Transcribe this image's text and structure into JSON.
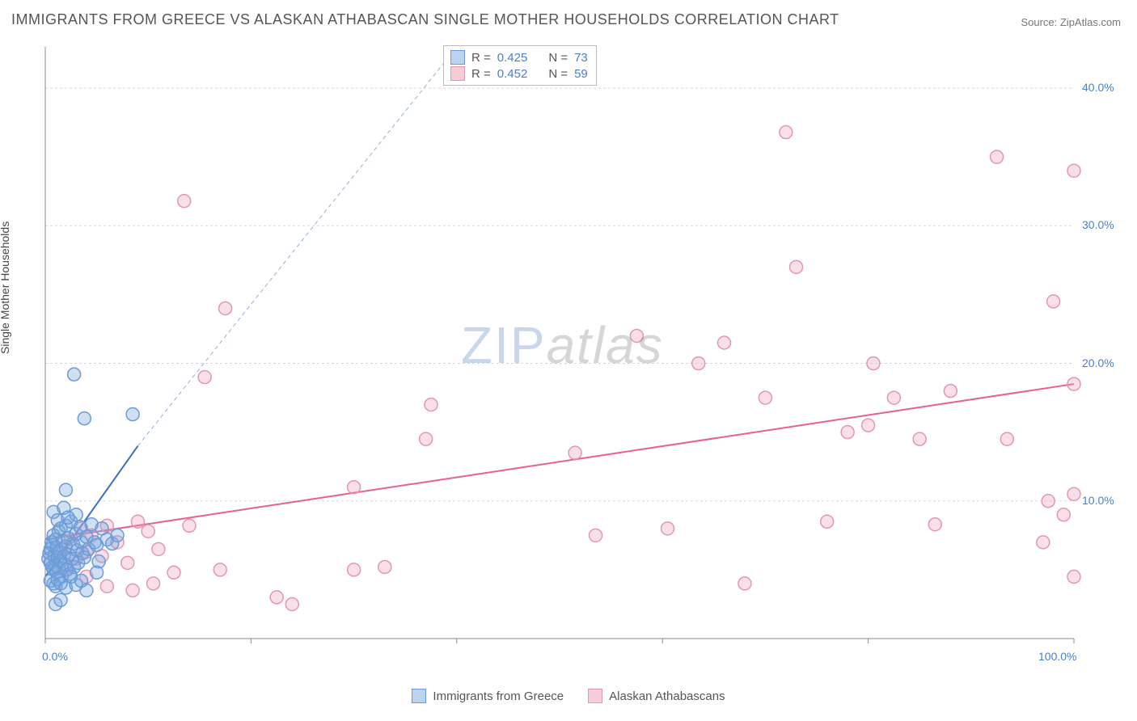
{
  "title": "IMMIGRANTS FROM GREECE VS ALASKAN ATHABASCAN SINGLE MOTHER HOUSEHOLDS CORRELATION CHART",
  "source": "Source: ZipAtlas.com",
  "y_axis_label": "Single Mother Households",
  "watermark": {
    "part1": "ZIP",
    "part2": "atlas"
  },
  "chart": {
    "type": "scatter",
    "background_color": "#ffffff",
    "grid_color": "#d8d8d8",
    "axis_color": "#888888",
    "xlim": [
      0,
      100
    ],
    "ylim": [
      0,
      43
    ],
    "x_ticks": [
      0,
      20,
      40,
      60,
      80,
      100
    ],
    "x_tick_labels_shown": [
      "0.0%",
      "100.0%"
    ],
    "y_ticks": [
      10,
      20,
      30,
      40
    ],
    "y_tick_labels": [
      "10.0%",
      "20.0%",
      "30.0%",
      "40.0%"
    ],
    "marker_radius": 8,
    "marker_stroke_width": 1.5,
    "trend_line_width": 2
  },
  "series": [
    {
      "name": "Immigrants from Greece",
      "fill_color": "rgba(120, 165, 220, 0.35)",
      "stroke_color": "#6a9bd8",
      "swatch_fill": "#bcd3ef",
      "swatch_border": "#6a9bd8",
      "R": "0.425",
      "N": "73",
      "trend": {
        "x1": 0,
        "y1": 4.5,
        "x2": 9,
        "y2": 14,
        "color": "#3a6fc2",
        "dashed_extension": true,
        "dx2": 40,
        "dy2": 43
      },
      "points": [
        [
          0.3,
          5.8
        ],
        [
          0.4,
          6.2
        ],
        [
          0.5,
          5.5
        ],
        [
          0.5,
          6.5
        ],
        [
          0.6,
          7.0
        ],
        [
          0.7,
          5.2
        ],
        [
          0.7,
          6.8
        ],
        [
          0.8,
          5.0
        ],
        [
          0.8,
          7.5
        ],
        [
          0.9,
          6.0
        ],
        [
          1.0,
          5.3
        ],
        [
          1.0,
          7.2
        ],
        [
          1.1,
          4.8
        ],
        [
          1.1,
          6.6
        ],
        [
          1.2,
          5.9
        ],
        [
          1.3,
          7.8
        ],
        [
          1.3,
          5.1
        ],
        [
          1.4,
          6.3
        ],
        [
          1.5,
          8.0
        ],
        [
          1.5,
          5.6
        ],
        [
          1.6,
          4.5
        ],
        [
          1.7,
          7.1
        ],
        [
          1.8,
          6.0
        ],
        [
          1.9,
          5.4
        ],
        [
          2.0,
          8.2
        ],
        [
          2.0,
          6.7
        ],
        [
          2.1,
          5.0
        ],
        [
          2.2,
          7.3
        ],
        [
          2.3,
          6.1
        ],
        [
          2.4,
          4.7
        ],
        [
          2.5,
          8.5
        ],
        [
          2.6,
          5.8
        ],
        [
          2.7,
          6.9
        ],
        [
          2.8,
          5.2
        ],
        [
          3.0,
          7.6
        ],
        [
          3.0,
          9.0
        ],
        [
          3.1,
          6.4
        ],
        [
          3.2,
          5.5
        ],
        [
          3.4,
          8.1
        ],
        [
          3.5,
          7.0
        ],
        [
          3.6,
          6.2
        ],
        [
          3.8,
          5.9
        ],
        [
          4.0,
          7.4
        ],
        [
          4.2,
          6.5
        ],
        [
          4.5,
          8.3
        ],
        [
          4.8,
          7.0
        ],
        [
          5.0,
          6.8
        ],
        [
          5.2,
          5.6
        ],
        [
          5.5,
          8.0
        ],
        [
          6.0,
          7.2
        ],
        [
          6.5,
          6.9
        ],
        [
          7.0,
          7.5
        ],
        [
          0.5,
          4.2
        ],
        [
          0.8,
          4.0
        ],
        [
          1.0,
          3.8
        ],
        [
          1.2,
          4.3
        ],
        [
          1.5,
          4.0
        ],
        [
          2.0,
          3.7
        ],
        [
          2.5,
          4.5
        ],
        [
          3.0,
          3.9
        ],
        [
          3.5,
          4.2
        ],
        [
          4.0,
          3.5
        ],
        [
          5.0,
          4.8
        ],
        [
          2.0,
          10.8
        ],
        [
          0.8,
          9.2
        ],
        [
          1.2,
          8.6
        ],
        [
          1.8,
          9.5
        ],
        [
          2.2,
          8.8
        ],
        [
          3.8,
          16.0
        ],
        [
          8.5,
          16.3
        ],
        [
          2.8,
          19.2
        ],
        [
          1.0,
          2.5
        ],
        [
          1.5,
          2.8
        ]
      ]
    },
    {
      "name": "Alaskan Athabascans",
      "fill_color": "rgba(235, 150, 175, 0.30)",
      "stroke_color": "#e397ad",
      "swatch_fill": "#f5cdd8",
      "swatch_border": "#e397ad",
      "R": "0.452",
      "N": "59",
      "trend": {
        "x1": 0,
        "y1": 7.2,
        "x2": 100,
        "y2": 18.5,
        "color": "#e8618c",
        "dashed_extension": false
      },
      "points": [
        [
          1.5,
          6.5
        ],
        [
          2.5,
          7.2
        ],
        [
          3.0,
          5.8
        ],
        [
          3.5,
          8.0
        ],
        [
          4.0,
          6.3
        ],
        [
          4.5,
          7.5
        ],
        [
          5.5,
          6.0
        ],
        [
          6.0,
          8.2
        ],
        [
          7.0,
          7.0
        ],
        [
          8.0,
          5.5
        ],
        [
          9.0,
          8.5
        ],
        [
          10.0,
          7.8
        ],
        [
          11.0,
          6.5
        ],
        [
          14.0,
          8.2
        ],
        [
          8.5,
          3.5
        ],
        [
          10.5,
          4.0
        ],
        [
          12.5,
          4.8
        ],
        [
          17.0,
          5.0
        ],
        [
          22.5,
          3.0
        ],
        [
          17.5,
          24.0
        ],
        [
          13.5,
          31.8
        ],
        [
          15.5,
          19.0
        ],
        [
          30.0,
          5.0
        ],
        [
          33.0,
          5.2
        ],
        [
          37.5,
          17.0
        ],
        [
          30.0,
          11.0
        ],
        [
          37.0,
          14.5
        ],
        [
          53.5,
          7.5
        ],
        [
          51.5,
          13.5
        ],
        [
          57.5,
          22.0
        ],
        [
          60.5,
          8.0
        ],
        [
          63.5,
          20.0
        ],
        [
          66.0,
          21.5
        ],
        [
          68.0,
          4.0
        ],
        [
          70.0,
          17.5
        ],
        [
          72.0,
          36.8
        ],
        [
          73.0,
          27.0
        ],
        [
          76.0,
          8.5
        ],
        [
          78.0,
          15.0
        ],
        [
          80.5,
          20.0
        ],
        [
          80.0,
          15.5
        ],
        [
          82.5,
          17.5
        ],
        [
          85.0,
          14.5
        ],
        [
          86.5,
          8.3
        ],
        [
          88.0,
          18.0
        ],
        [
          92.5,
          35.0
        ],
        [
          93.5,
          14.5
        ],
        [
          97.0,
          7.0
        ],
        [
          98.0,
          24.5
        ],
        [
          99.0,
          9.0
        ],
        [
          100.0,
          34.0
        ],
        [
          100.0,
          18.5
        ],
        [
          100.0,
          10.5
        ],
        [
          97.5,
          10.0
        ],
        [
          100.0,
          4.5
        ],
        [
          4.0,
          4.5
        ],
        [
          6.0,
          3.8
        ],
        [
          2.0,
          5.0
        ],
        [
          24.0,
          2.5
        ]
      ]
    }
  ],
  "legend_stats_label_r": "R =",
  "legend_stats_label_n": "N ="
}
